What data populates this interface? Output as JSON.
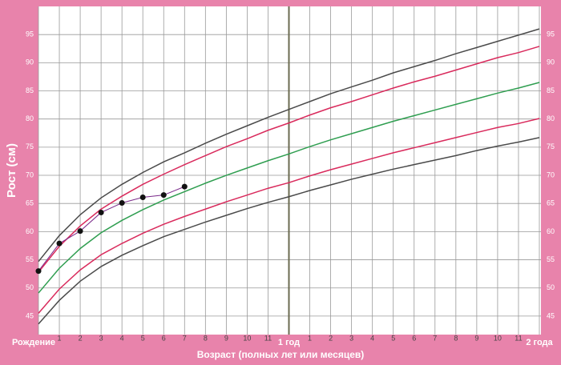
{
  "chart_data": {
    "type": "line",
    "ylabel": "Рост (см)",
    "xlabel": "Возраст (полных лет или месяцев)",
    "xlim": [
      0,
      24
    ],
    "ylim": [
      42,
      100
    ],
    "xticks": [
      {
        "value": 0,
        "label": "Рождение"
      },
      1,
      2,
      3,
      4,
      5,
      6,
      7,
      8,
      9,
      10,
      11,
      {
        "value": 12,
        "label": "1 год"
      },
      {
        "value": 13,
        "label": "1"
      },
      {
        "value": 14,
        "label": "2"
      },
      {
        "value": 15,
        "label": "3"
      },
      {
        "value": 16,
        "label": "4"
      },
      {
        "value": 17,
        "label": "5"
      },
      {
        "value": 18,
        "label": "6"
      },
      {
        "value": 19,
        "label": "7"
      },
      {
        "value": 20,
        "label": "8"
      },
      {
        "value": 21,
        "label": "9"
      },
      {
        "value": 22,
        "label": "10"
      },
      {
        "value": 23,
        "label": "11"
      },
      {
        "value": 24,
        "label": "2 года"
      }
    ],
    "yticks": [
      45,
      50,
      55,
      60,
      65,
      70,
      75,
      80,
      85,
      90,
      95
    ],
    "grid": true,
    "series": [
      {
        "color": "#4a4a4a",
        "x": [
          0,
          1,
          2,
          3,
          4,
          5,
          6,
          7,
          8,
          9,
          10,
          11,
          12,
          13,
          14,
          15,
          16,
          17,
          18,
          19,
          20,
          21,
          22,
          23,
          24
        ],
        "values": [
          54.7,
          59.3,
          63.0,
          66.0,
          68.4,
          70.5,
          72.4,
          74.0,
          75.7,
          77.3,
          78.8,
          80.3,
          81.7,
          83.1,
          84.5,
          85.7,
          86.9,
          88.2,
          89.3,
          90.4,
          91.6,
          92.7,
          93.8,
          94.9,
          96.0
        ]
      },
      {
        "color": "#d92a5c",
        "x": [
          0,
          1,
          2,
          3,
          4,
          5,
          6,
          7,
          8,
          9,
          10,
          11,
          12,
          13,
          14,
          15,
          16,
          17,
          18,
          19,
          20,
          21,
          22,
          23,
          24
        ],
        "values": [
          52.8,
          57.4,
          61.0,
          64.0,
          66.3,
          68.4,
          70.2,
          71.9,
          73.5,
          75.1,
          76.5,
          78.0,
          79.3,
          80.7,
          82.0,
          83.1,
          84.3,
          85.5,
          86.6,
          87.6,
          88.7,
          89.8,
          90.9,
          91.8,
          92.9
        ]
      },
      {
        "color": "#2f9e50",
        "x": [
          0,
          1,
          2,
          3,
          4,
          5,
          6,
          7,
          8,
          9,
          10,
          11,
          12,
          13,
          14,
          15,
          16,
          17,
          18,
          19,
          20,
          21,
          22,
          23,
          24
        ],
        "values": [
          49.1,
          53.5,
          57.0,
          59.8,
          62.0,
          63.9,
          65.6,
          67.1,
          68.6,
          70.0,
          71.3,
          72.6,
          73.8,
          75.1,
          76.3,
          77.4,
          78.5,
          79.6,
          80.6,
          81.6,
          82.6,
          83.6,
          84.6,
          85.5,
          86.5
        ]
      },
      {
        "color": "#d92a5c",
        "x": [
          0,
          1,
          2,
          3,
          4,
          5,
          6,
          7,
          8,
          9,
          10,
          11,
          12,
          13,
          14,
          15,
          16,
          17,
          18,
          19,
          20,
          21,
          22,
          23,
          24
        ],
        "values": [
          45.5,
          49.8,
          53.2,
          55.9,
          57.9,
          59.7,
          61.3,
          62.7,
          64.0,
          65.3,
          66.5,
          67.7,
          68.7,
          69.9,
          71.0,
          72.0,
          73.0,
          74.0,
          74.9,
          75.8,
          76.7,
          77.6,
          78.5,
          79.2,
          80.1
        ]
      },
      {
        "color": "#4a4a4a",
        "x": [
          0,
          1,
          2,
          3,
          4,
          5,
          6,
          7,
          8,
          9,
          10,
          11,
          12,
          13,
          14,
          15,
          16,
          17,
          18,
          19,
          20,
          21,
          22,
          23,
          24
        ],
        "values": [
          43.6,
          47.8,
          51.2,
          53.8,
          55.8,
          57.5,
          59.1,
          60.4,
          61.7,
          62.9,
          64.1,
          65.2,
          66.2,
          67.3,
          68.3,
          69.3,
          70.2,
          71.1,
          71.9,
          72.7,
          73.5,
          74.4,
          75.2,
          75.9,
          76.7
        ]
      },
      {
        "color": "#7a2a8a",
        "markers": true,
        "x": [
          0,
          1,
          2,
          3,
          4,
          5,
          6,
          7
        ],
        "values": [
          53.0,
          57.9,
          60.1,
          63.4,
          65.1,
          66.1,
          66.5,
          68.0
        ]
      }
    ]
  }
}
